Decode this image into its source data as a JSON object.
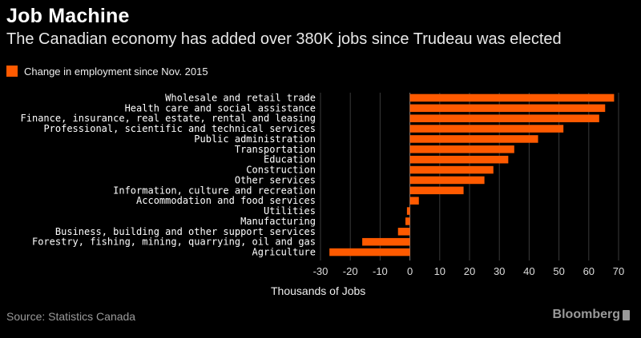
{
  "header": {
    "title": "Job Machine",
    "subtitle": "The Canadian economy has added over 380K jobs since Trudeau was elected"
  },
  "legend": {
    "label": "Change in employment since Nov. 2015"
  },
  "footer": {
    "source": "Source: Statistics Canada",
    "brand": "Bloomberg"
  },
  "colors": {
    "bar": "#ff5a00",
    "grid": "#3a3a3a",
    "background": "#000000"
  },
  "chart_data": {
    "type": "bar",
    "orientation": "horizontal",
    "title": "Job Machine",
    "xlabel": "Thousands of Jobs",
    "ylabel": "",
    "xlim": [
      -30,
      70
    ],
    "xticks": [
      -30,
      -20,
      -10,
      0,
      10,
      20,
      30,
      40,
      50,
      60,
      70
    ],
    "grid": true,
    "legend": "top-left",
    "series": [
      {
        "name": "Change in employment since Nov. 2015"
      }
    ],
    "categories": [
      "Wholesale and retail trade",
      "Health care and social assistance",
      "Finance, insurance, real estate, rental and leasing",
      "Professional, scientific and technical services",
      "Public administration",
      "Transportation",
      "Education",
      "Construction",
      "Other services",
      "Information, culture and recreation",
      "Accommodation and food services",
      "Utilities",
      "Manufacturing",
      "Business, building and other support services",
      "Forestry, fishing, mining, quarrying, oil and gas",
      "Agriculture"
    ],
    "values": [
      68.5,
      65.5,
      63.5,
      51.5,
      43,
      35,
      33,
      28,
      25,
      18,
      3,
      -1,
      -1.5,
      -4,
      -16,
      -27
    ]
  }
}
